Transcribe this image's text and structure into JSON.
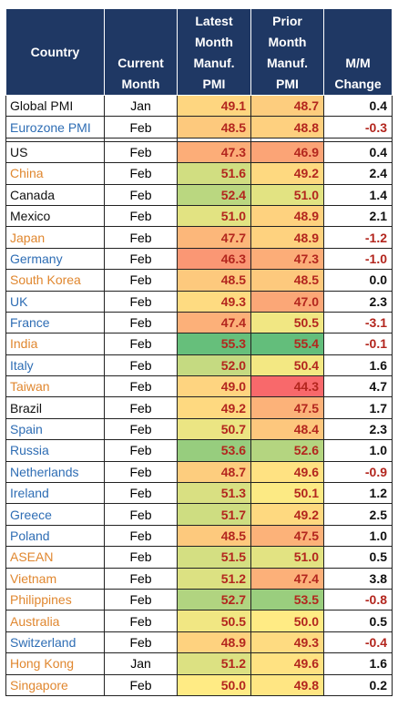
{
  "chart_data": {
    "type": "table",
    "headers": {
      "country": "Country",
      "current_month": [
        "Current",
        "Month"
      ],
      "latest": [
        "Latest",
        "Month",
        "Manuf.",
        "PMI"
      ],
      "prior": [
        "Prior",
        "Month",
        "Manuf.",
        "PMI"
      ],
      "change": [
        "M/M",
        "Change"
      ]
    },
    "rows": [
      {
        "country": "Global PMI",
        "month": "Jan",
        "latest": "49.1",
        "prior": "48.7",
        "change": "0.4",
        "name_color": "#111111"
      },
      {
        "country": "Eurozone PMI",
        "month": "Feb",
        "latest": "48.5",
        "prior": "48.8",
        "change": "-0.3",
        "name_color": "#2e6db4"
      },
      {
        "country": "US",
        "month": "Feb",
        "latest": "47.3",
        "prior": "46.9",
        "change": "0.4",
        "name_color": "#111111"
      },
      {
        "country": "China",
        "month": "Feb",
        "latest": "51.6",
        "prior": "49.2",
        "change": "2.4",
        "name_color": "#e0872f"
      },
      {
        "country": "Canada",
        "month": "Feb",
        "latest": "52.4",
        "prior": "51.0",
        "change": "1.4",
        "name_color": "#111111"
      },
      {
        "country": "Mexico",
        "month": "Feb",
        "latest": "51.0",
        "prior": "48.9",
        "change": "2.1",
        "name_color": "#111111"
      },
      {
        "country": "Japan",
        "month": "Feb",
        "latest": "47.7",
        "prior": "48.9",
        "change": "-1.2",
        "name_color": "#e0872f"
      },
      {
        "country": "Germany",
        "month": "Feb",
        "latest": "46.3",
        "prior": "47.3",
        "change": "-1.0",
        "name_color": "#2e6db4"
      },
      {
        "country": "South Korea",
        "month": "Feb",
        "latest": "48.5",
        "prior": "48.5",
        "change": "0.0",
        "name_color": "#e0872f"
      },
      {
        "country": "UK",
        "month": "Feb",
        "latest": "49.3",
        "prior": "47.0",
        "change": "2.3",
        "name_color": "#2e6db4"
      },
      {
        "country": "France",
        "month": "Feb",
        "latest": "47.4",
        "prior": "50.5",
        "change": "-3.1",
        "name_color": "#2e6db4"
      },
      {
        "country": "India",
        "month": "Feb",
        "latest": "55.3",
        "prior": "55.4",
        "change": "-0.1",
        "name_color": "#e0872f"
      },
      {
        "country": "Italy",
        "month": "Feb",
        "latest": "52.0",
        "prior": "50.4",
        "change": "1.6",
        "name_color": "#2e6db4"
      },
      {
        "country": "Taiwan",
        "month": "Feb",
        "latest": "49.0",
        "prior": "44.3",
        "change": "4.7",
        "name_color": "#e0872f"
      },
      {
        "country": "Brazil",
        "month": "Feb",
        "latest": "49.2",
        "prior": "47.5",
        "change": "1.7",
        "name_color": "#111111"
      },
      {
        "country": "Spain",
        "month": "Feb",
        "latest": "50.7",
        "prior": "48.4",
        "change": "2.3",
        "name_color": "#2e6db4"
      },
      {
        "country": "Russia",
        "month": "Feb",
        "latest": "53.6",
        "prior": "52.6",
        "change": "1.0",
        "name_color": "#2e6db4"
      },
      {
        "country": "Netherlands",
        "month": "Feb",
        "latest": "48.7",
        "prior": "49.6",
        "change": "-0.9",
        "name_color": "#2e6db4"
      },
      {
        "country": "Ireland",
        "month": "Feb",
        "latest": "51.3",
        "prior": "50.1",
        "change": "1.2",
        "name_color": "#2e6db4"
      },
      {
        "country": "Greece",
        "month": "Feb",
        "latest": "51.7",
        "prior": "49.2",
        "change": "2.5",
        "name_color": "#2e6db4"
      },
      {
        "country": "Poland",
        "month": "Feb",
        "latest": "48.5",
        "prior": "47.5",
        "change": "1.0",
        "name_color": "#2e6db4"
      },
      {
        "country": "ASEAN",
        "month": "Feb",
        "latest": "51.5",
        "prior": "51.0",
        "change": "0.5",
        "name_color": "#e0872f"
      },
      {
        "country": "Vietnam",
        "month": "Feb",
        "latest": "51.2",
        "prior": "47.4",
        "change": "3.8",
        "name_color": "#e0872f"
      },
      {
        "country": "Philippines",
        "month": "Feb",
        "latest": "52.7",
        "prior": "53.5",
        "change": "-0.8",
        "name_color": "#e0872f"
      },
      {
        "country": "Australia",
        "month": "Feb",
        "latest": "50.5",
        "prior": "50.0",
        "change": "0.5",
        "name_color": "#e0872f"
      },
      {
        "country": "Switzerland",
        "month": "Feb",
        "latest": "48.9",
        "prior": "49.3",
        "change": "-0.4",
        "name_color": "#2e6db4"
      },
      {
        "country": "Hong Kong",
        "month": "Jan",
        "latest": "51.2",
        "prior": "49.6",
        "change": "1.6",
        "name_color": "#e0872f"
      },
      {
        "country": "Singapore",
        "month": "Feb",
        "latest": "50.0",
        "prior": "49.8",
        "change": "0.2",
        "name_color": "#e0872f"
      }
    ],
    "colors": {
      "header_bg": "#1f3864",
      "header_text": "#ffffff",
      "value_text": "#b3261e",
      "negative_change": "#b3261e",
      "heat_low": "#f8696b",
      "heat_mid": "#ffeb84",
      "heat_high": "#63be7b"
    }
  }
}
